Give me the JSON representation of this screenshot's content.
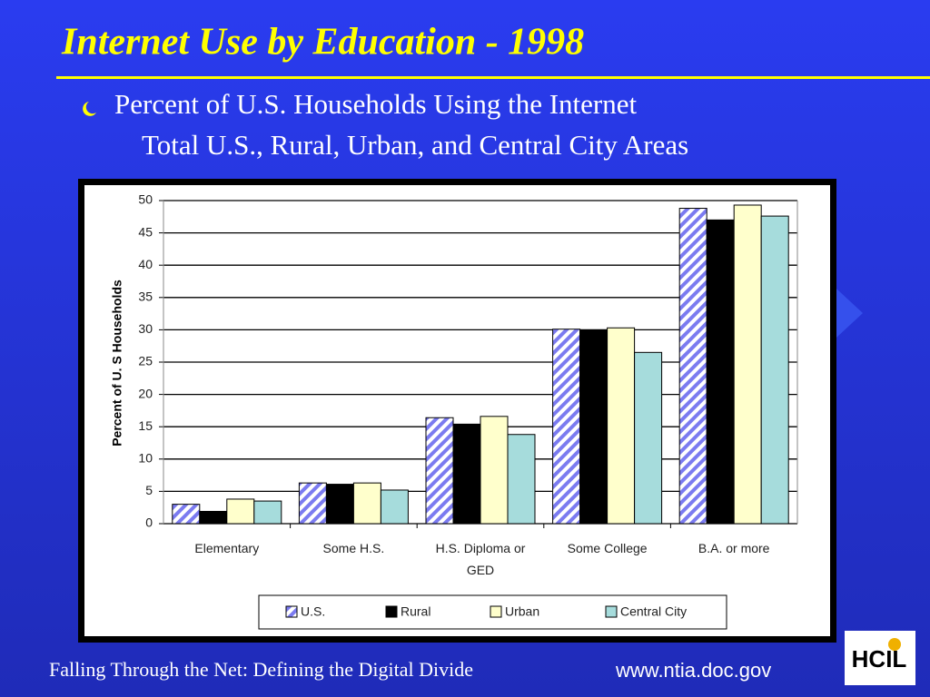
{
  "chart_data": {
    "type": "bar",
    "title": "Internet Use by Education - 1998",
    "subtitle": [
      "Percent of U.S. Households Using the Internet",
      "Total U.S., Rural, Urban, and Central City Areas"
    ],
    "y_label": "Percent of U. S Households",
    "categories": [
      "Elementary",
      "Some H.S.",
      "H.S. Diploma or GED",
      "Some College",
      "B.A. or more"
    ],
    "series": [
      {
        "name": "U.S.",
        "color": "#7b7bf0",
        "hatch": true,
        "values": [
          3.0,
          6.3,
          16.4,
          30.1,
          48.8
        ]
      },
      {
        "name": "Rural",
        "color": "#000000",
        "values": [
          1.9,
          6.1,
          15.4,
          29.9,
          47.0
        ]
      },
      {
        "name": "Urban",
        "color": "#ffffcc",
        "values": [
          3.8,
          6.3,
          16.6,
          30.3,
          49.3
        ]
      },
      {
        "name": "Central City",
        "color": "#a6dcdc",
        "values": [
          3.5,
          5.2,
          13.8,
          26.5,
          47.6
        ]
      }
    ],
    "ylim": [
      0,
      50
    ],
    "yticks": [
      0,
      5,
      10,
      15,
      20,
      25,
      30,
      35,
      40,
      45,
      50
    ],
    "grid": true,
    "legend": "bottom"
  },
  "footer": {
    "source": "Falling Through the Net: Defining the Digital Divide",
    "url": "www.ntia.doc.gov"
  },
  "logo": "HCIL"
}
